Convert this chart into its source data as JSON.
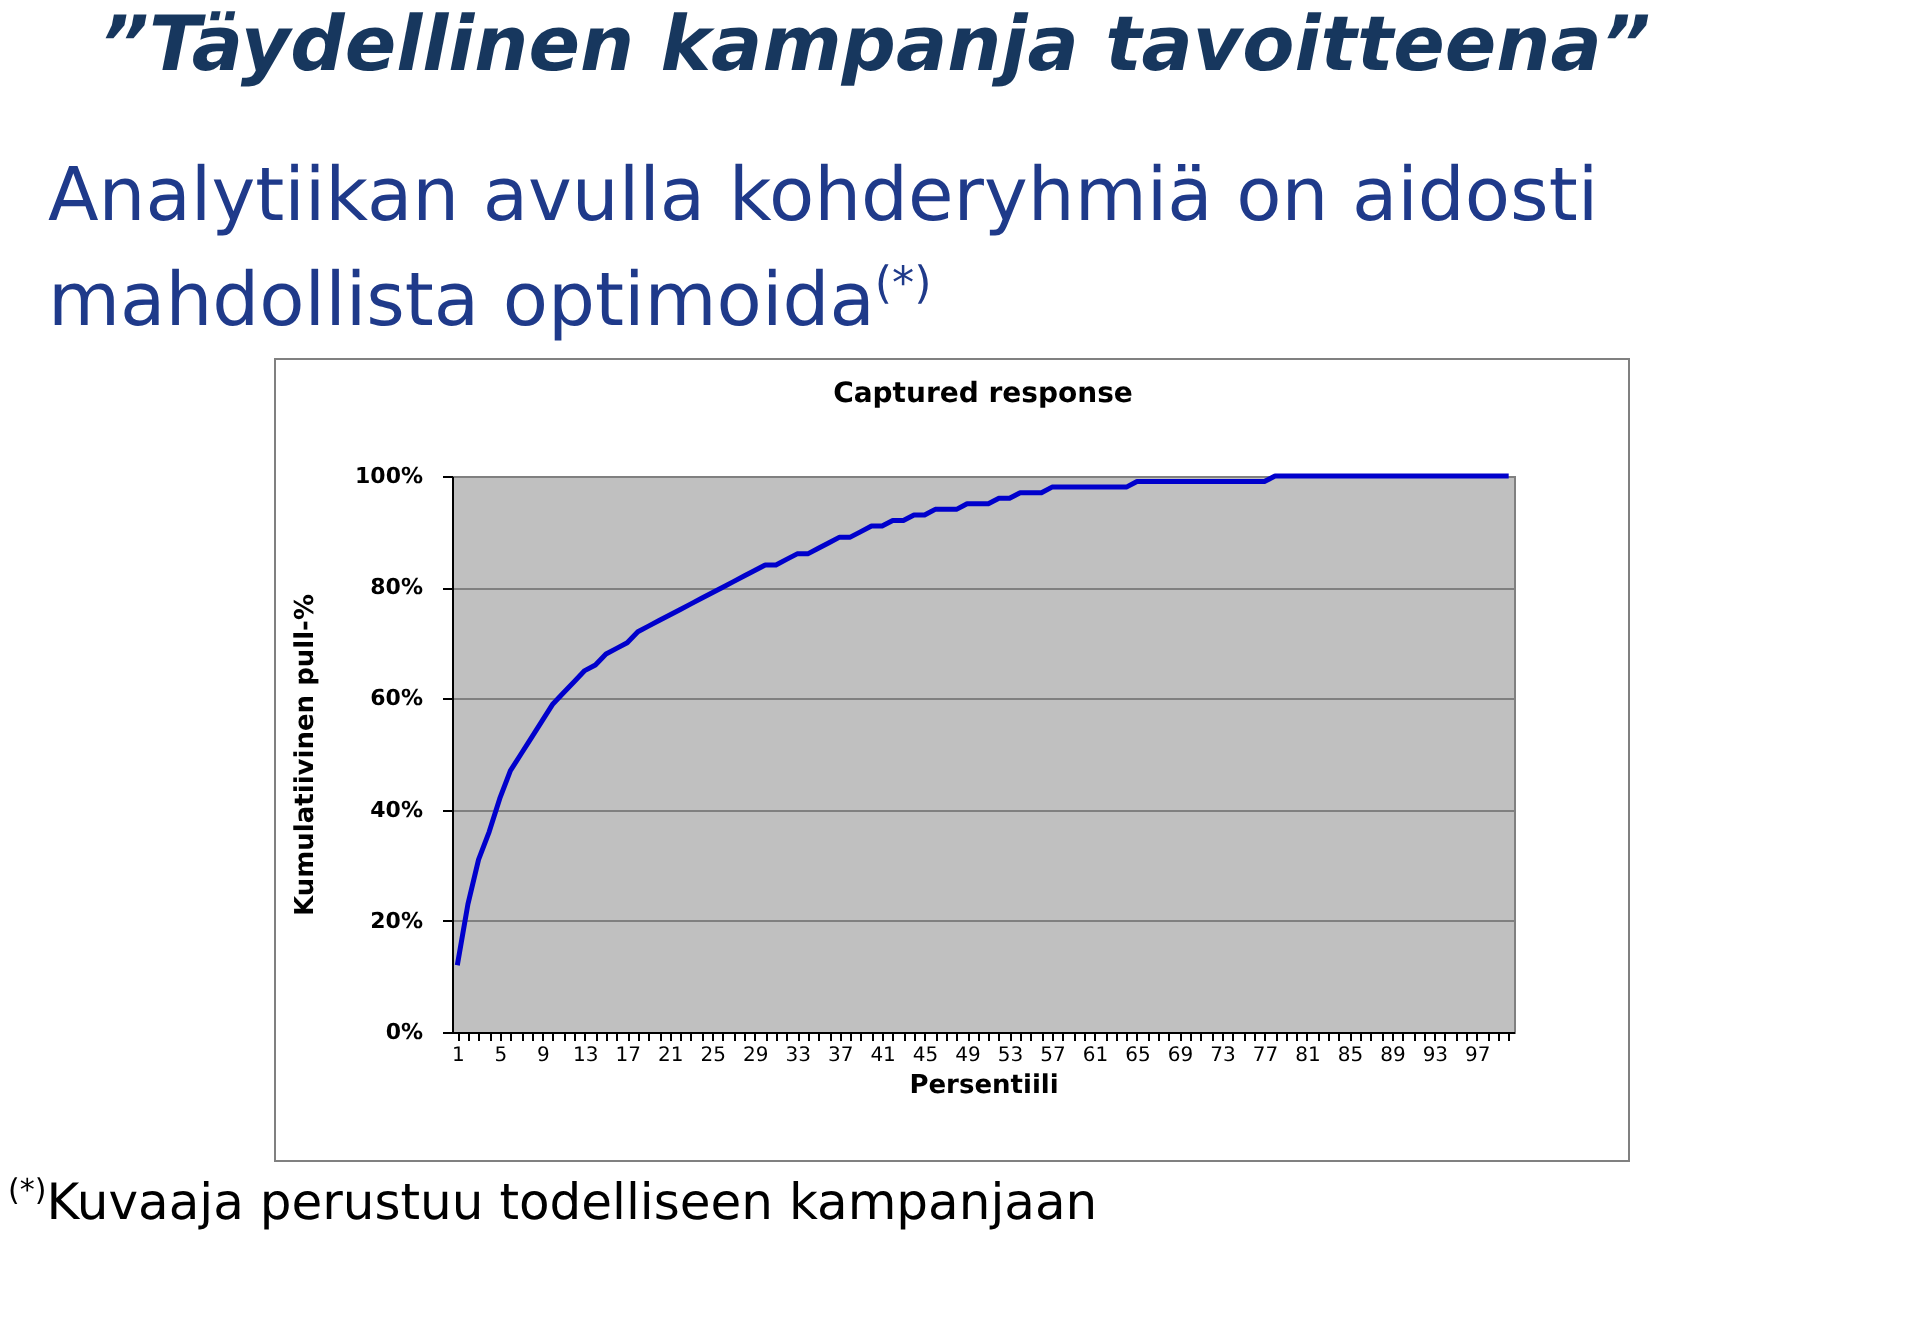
{
  "chart_data": {
    "type": "line",
    "title": "”Täydellinen kampanja tavoitteena”",
    "subtitle": "Analytiikan avulla kohderyhmiä on aidosti mahdollista optimoida$^{(*)}$",
    "annotations": [
      "Captured response",
      "$^{(*)}$Kuvaaja perustuu todelliseen kampanjaan"
    ],
    "xlabel": "Persentiili",
    "ylabel": "Kumulatiivinen pull-%",
    "categories": [
      "1",
      null,
      null,
      null,
      "5",
      null,
      null,
      null,
      "9",
      null,
      null,
      null,
      "13",
      null,
      null,
      null,
      "17",
      null,
      null,
      null,
      "21",
      null,
      null,
      null,
      "25",
      null,
      null,
      null,
      "29",
      null,
      null,
      null,
      "33",
      null,
      null,
      null,
      "37",
      null,
      null,
      null,
      "41",
      null,
      null,
      null,
      "45",
      null,
      null,
      null,
      "49",
      null,
      null,
      null,
      "53",
      null,
      null,
      null,
      "57",
      null,
      null,
      null,
      "61",
      null,
      null,
      null,
      "65",
      null,
      null,
      null,
      "69",
      null,
      null,
      null,
      "73",
      null,
      null,
      null,
      "77",
      null,
      null,
      null,
      "81",
      null,
      null,
      null,
      "85",
      null,
      null,
      null,
      "89",
      null,
      null,
      null,
      "93",
      null,
      null,
      null,
      "97",
      null,
      null,
      null
    ],
    "series": [
      {
        "color": "#0000cc",
        "values": [
          12,
          23,
          31,
          36,
          42,
          47,
          50,
          53,
          56,
          59,
          61,
          63,
          65,
          66,
          68,
          69,
          70,
          72,
          73,
          74,
          75,
          76,
          77,
          78,
          79,
          80,
          81,
          82,
          83,
          84,
          84,
          85,
          86,
          86,
          87,
          88,
          89,
          89,
          90,
          91,
          91,
          92,
          92,
          93,
          93,
          94,
          94,
          94,
          95,
          95,
          95,
          96,
          96,
          97,
          97,
          97,
          98,
          98,
          98,
          98,
          98,
          98,
          98,
          98,
          99,
          99,
          99,
          99,
          99,
          99,
          99,
          99,
          99,
          99,
          99,
          99,
          99,
          100,
          100,
          100,
          100,
          100,
          100,
          100,
          100,
          100,
          100,
          100,
          100,
          100,
          100,
          100,
          100,
          100,
          100,
          100,
          100,
          100,
          100,
          100
        ]
      }
    ],
    "ylim": [
      0,
      100
    ],
    "yticks": [
      {
        "value": 0,
        "label": "0%"
      },
      {
        "value": 20,
        "label": "20%"
      },
      {
        "value": 40,
        "label": "40%"
      },
      {
        "value": 60,
        "label": "60%"
      },
      {
        "value": 80,
        "label": "80%"
      },
      {
        "value": 100,
        "label": "100%"
      }
    ],
    "grid": "y",
    "marker": "none",
    "line_style": "solid"
  }
}
